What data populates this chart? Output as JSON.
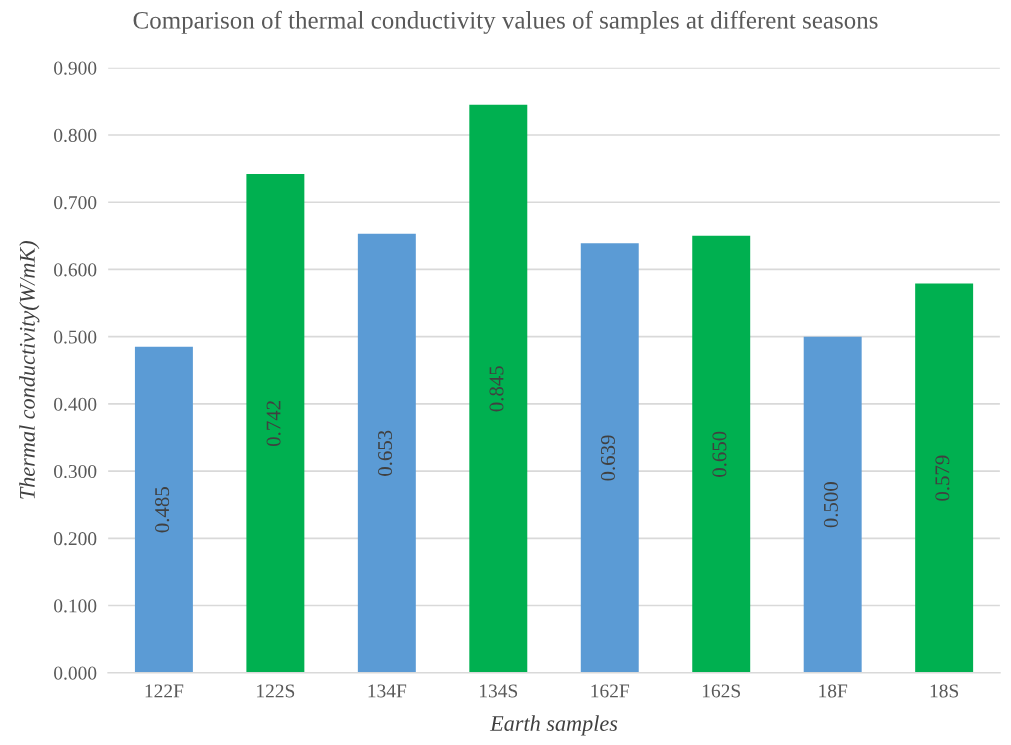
{
  "chart_data": {
    "type": "bar",
    "title": "Comparison of thermal conductivity values of samples at different seasons",
    "xlabel": "Earth samples",
    "ylabel": "Thermal conductivity(W/mK)",
    "categories": [
      "122F",
      "122S",
      "134F",
      "134S",
      "162F",
      "162S",
      "18F",
      "18S"
    ],
    "values": [
      0.485,
      0.742,
      0.653,
      0.845,
      0.639,
      0.65,
      0.5,
      0.579
    ],
    "value_labels": [
      "0.485",
      "0.742",
      "0.653",
      "0.845",
      "0.639",
      "0.650",
      "0.500",
      "0.579"
    ],
    "colors": [
      "#5b9bd5",
      "#00b050",
      "#5b9bd5",
      "#00b050",
      "#5b9bd5",
      "#00b050",
      "#5b9bd5",
      "#00b050"
    ],
    "ylim": [
      0,
      0.9
    ],
    "yticks": [
      {
        "value": 0,
        "label": "0.000"
      },
      {
        "value": 0.1,
        "label": "0.100"
      },
      {
        "value": 0.2,
        "label": "0.200"
      },
      {
        "value": 0.3,
        "label": "0.300"
      },
      {
        "value": 0.4,
        "label": "0.400"
      },
      {
        "value": 0.5,
        "label": "0.500"
      },
      {
        "value": 0.6,
        "label": "0.600"
      },
      {
        "value": 0.7,
        "label": "0.700"
      },
      {
        "value": 0.8,
        "label": "0.800"
      },
      {
        "value": 0.9,
        "label": "0.900"
      }
    ],
    "grid": "y"
  }
}
